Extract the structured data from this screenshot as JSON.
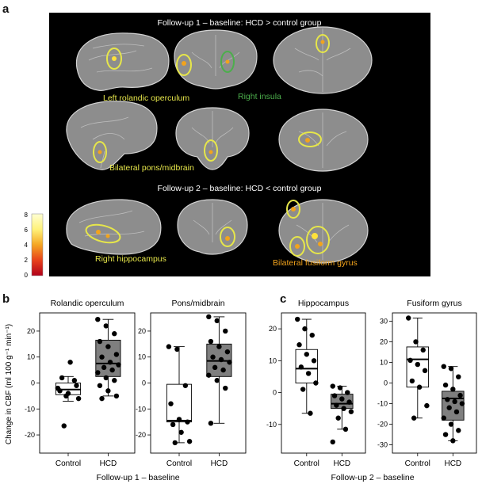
{
  "panel_labels": {
    "a": "a",
    "b": "b",
    "c": "c"
  },
  "panel_a": {
    "header_1": "Follow-up 1 – baseline: HCD > control group",
    "header_2": "Follow-up 2 – baseline: HCD < control group",
    "regions": {
      "left_rolandic": "Left rolandic operculum",
      "right_insula": "Right insula",
      "pons_midbrain": "Bilateral pons/midbrain",
      "right_hippocampus": "Right hippocampus",
      "fusiform": "Bilateral fusiform gyrus"
    },
    "colorbar_ticks": [
      "8",
      "6",
      "4",
      "2",
      "0"
    ],
    "colors": {
      "yellow": "#e6e64a",
      "green": "#4cae4c",
      "orange": "#f2a31c",
      "background": "#000000"
    }
  },
  "y_axis_label": "Change in CBF (ml 100 g⁻¹ min⁻¹)",
  "footer_b": "Follow-up 1 – baseline",
  "footer_c": "Follow-up 2 – baseline",
  "chart_data": [
    {
      "type": "box",
      "title": "Rolandic operculum",
      "categories": [
        "Control",
        "HCD"
      ],
      "ylim": [
        -27,
        27
      ],
      "yticks": [
        -20,
        -10,
        0,
        10,
        20
      ],
      "boxes": [
        {
          "q1": -4.5,
          "median": -2.5,
          "q3": 0,
          "whisker_low": -7,
          "whisker_high": 2.5,
          "fill": "#ffffff"
        },
        {
          "q1": 2.5,
          "median": 7.5,
          "q3": 16.5,
          "whisker_low": -5,
          "whisker_high": 24.5,
          "fill": "#7f7f7f"
        }
      ],
      "points": [
        [
          -2,
          -5,
          1,
          -3,
          -4,
          -1,
          2,
          8,
          -6,
          -16.5
        ],
        [
          24.5,
          22,
          19,
          16,
          14,
          11,
          10,
          8,
          7,
          6,
          5,
          4,
          2,
          1,
          -1,
          -3,
          -5,
          -6
        ]
      ]
    },
    {
      "type": "box",
      "title": "Pons/midbrain",
      "categories": [
        "Control",
        "HCD"
      ],
      "ylim": [
        -27,
        27
      ],
      "yticks": [
        -20,
        -10,
        0,
        10,
        20
      ],
      "boxes": [
        {
          "q1": -15,
          "median": -14.5,
          "q3": -0.5,
          "whisker_low": -23,
          "whisker_high": 14,
          "fill": "#ffffff"
        },
        {
          "q1": 2.5,
          "median": 8.5,
          "q3": 15,
          "whisker_low": -15.5,
          "whisker_high": 25.5,
          "fill": "#7f7f7f"
        }
      ],
      "points": [
        [
          14,
          13,
          -1,
          -8,
          -14,
          -15,
          -16,
          -19,
          -22.5,
          -23
        ],
        [
          25.5,
          24,
          20,
          16,
          14,
          12,
          10,
          9,
          8,
          6,
          5,
          3,
          1,
          -2,
          -15.5
        ]
      ]
    },
    {
      "type": "box",
      "title": "Hippocampus",
      "categories": [
        "Control",
        "HCD"
      ],
      "ylim": [
        -19,
        25
      ],
      "yticks": [
        -10,
        0,
        10,
        20
      ],
      "boxes": [
        {
          "q1": 3,
          "median": 7.5,
          "q3": 13.5,
          "whisker_low": -6.5,
          "whisker_high": 23,
          "fill": "#ffffff"
        },
        {
          "q1": -5,
          "median": -3.5,
          "q3": -0.5,
          "whisker_low": -11.5,
          "whisker_high": 2,
          "fill": "#7f7f7f"
        }
      ],
      "points": [
        [
          23,
          20,
          18,
          15,
          12,
          10,
          8,
          6,
          3,
          1,
          -6.5
        ],
        [
          2,
          1.5,
          0,
          -1,
          -2,
          -3,
          -4,
          -5,
          -6,
          -8,
          -11.5,
          -15.5
        ]
      ]
    },
    {
      "type": "box",
      "title": "Fusiform gyrus",
      "categories": [
        "Control",
        "HCD"
      ],
      "ylim": [
        -34,
        34
      ],
      "yticks": [
        -30,
        -20,
        -10,
        0,
        10,
        20,
        30
      ],
      "boxes": [
        {
          "q1": -2,
          "median": 11.5,
          "q3": 17.5,
          "whisker_low": -17,
          "whisker_high": 31.5,
          "fill": "#ffffff"
        },
        {
          "q1": -18,
          "median": -7.5,
          "q3": -4,
          "whisker_low": -28,
          "whisker_high": 8,
          "fill": "#7f7f7f"
        }
      ],
      "points": [
        [
          31.5,
          20,
          16,
          11,
          9,
          6,
          1,
          -2,
          -11,
          -17
        ],
        [
          8,
          7,
          3,
          -1,
          -3,
          -6,
          -8,
          -9,
          -10,
          -12,
          -14,
          -17,
          -20,
          -23,
          -25,
          -28
        ]
      ]
    }
  ]
}
